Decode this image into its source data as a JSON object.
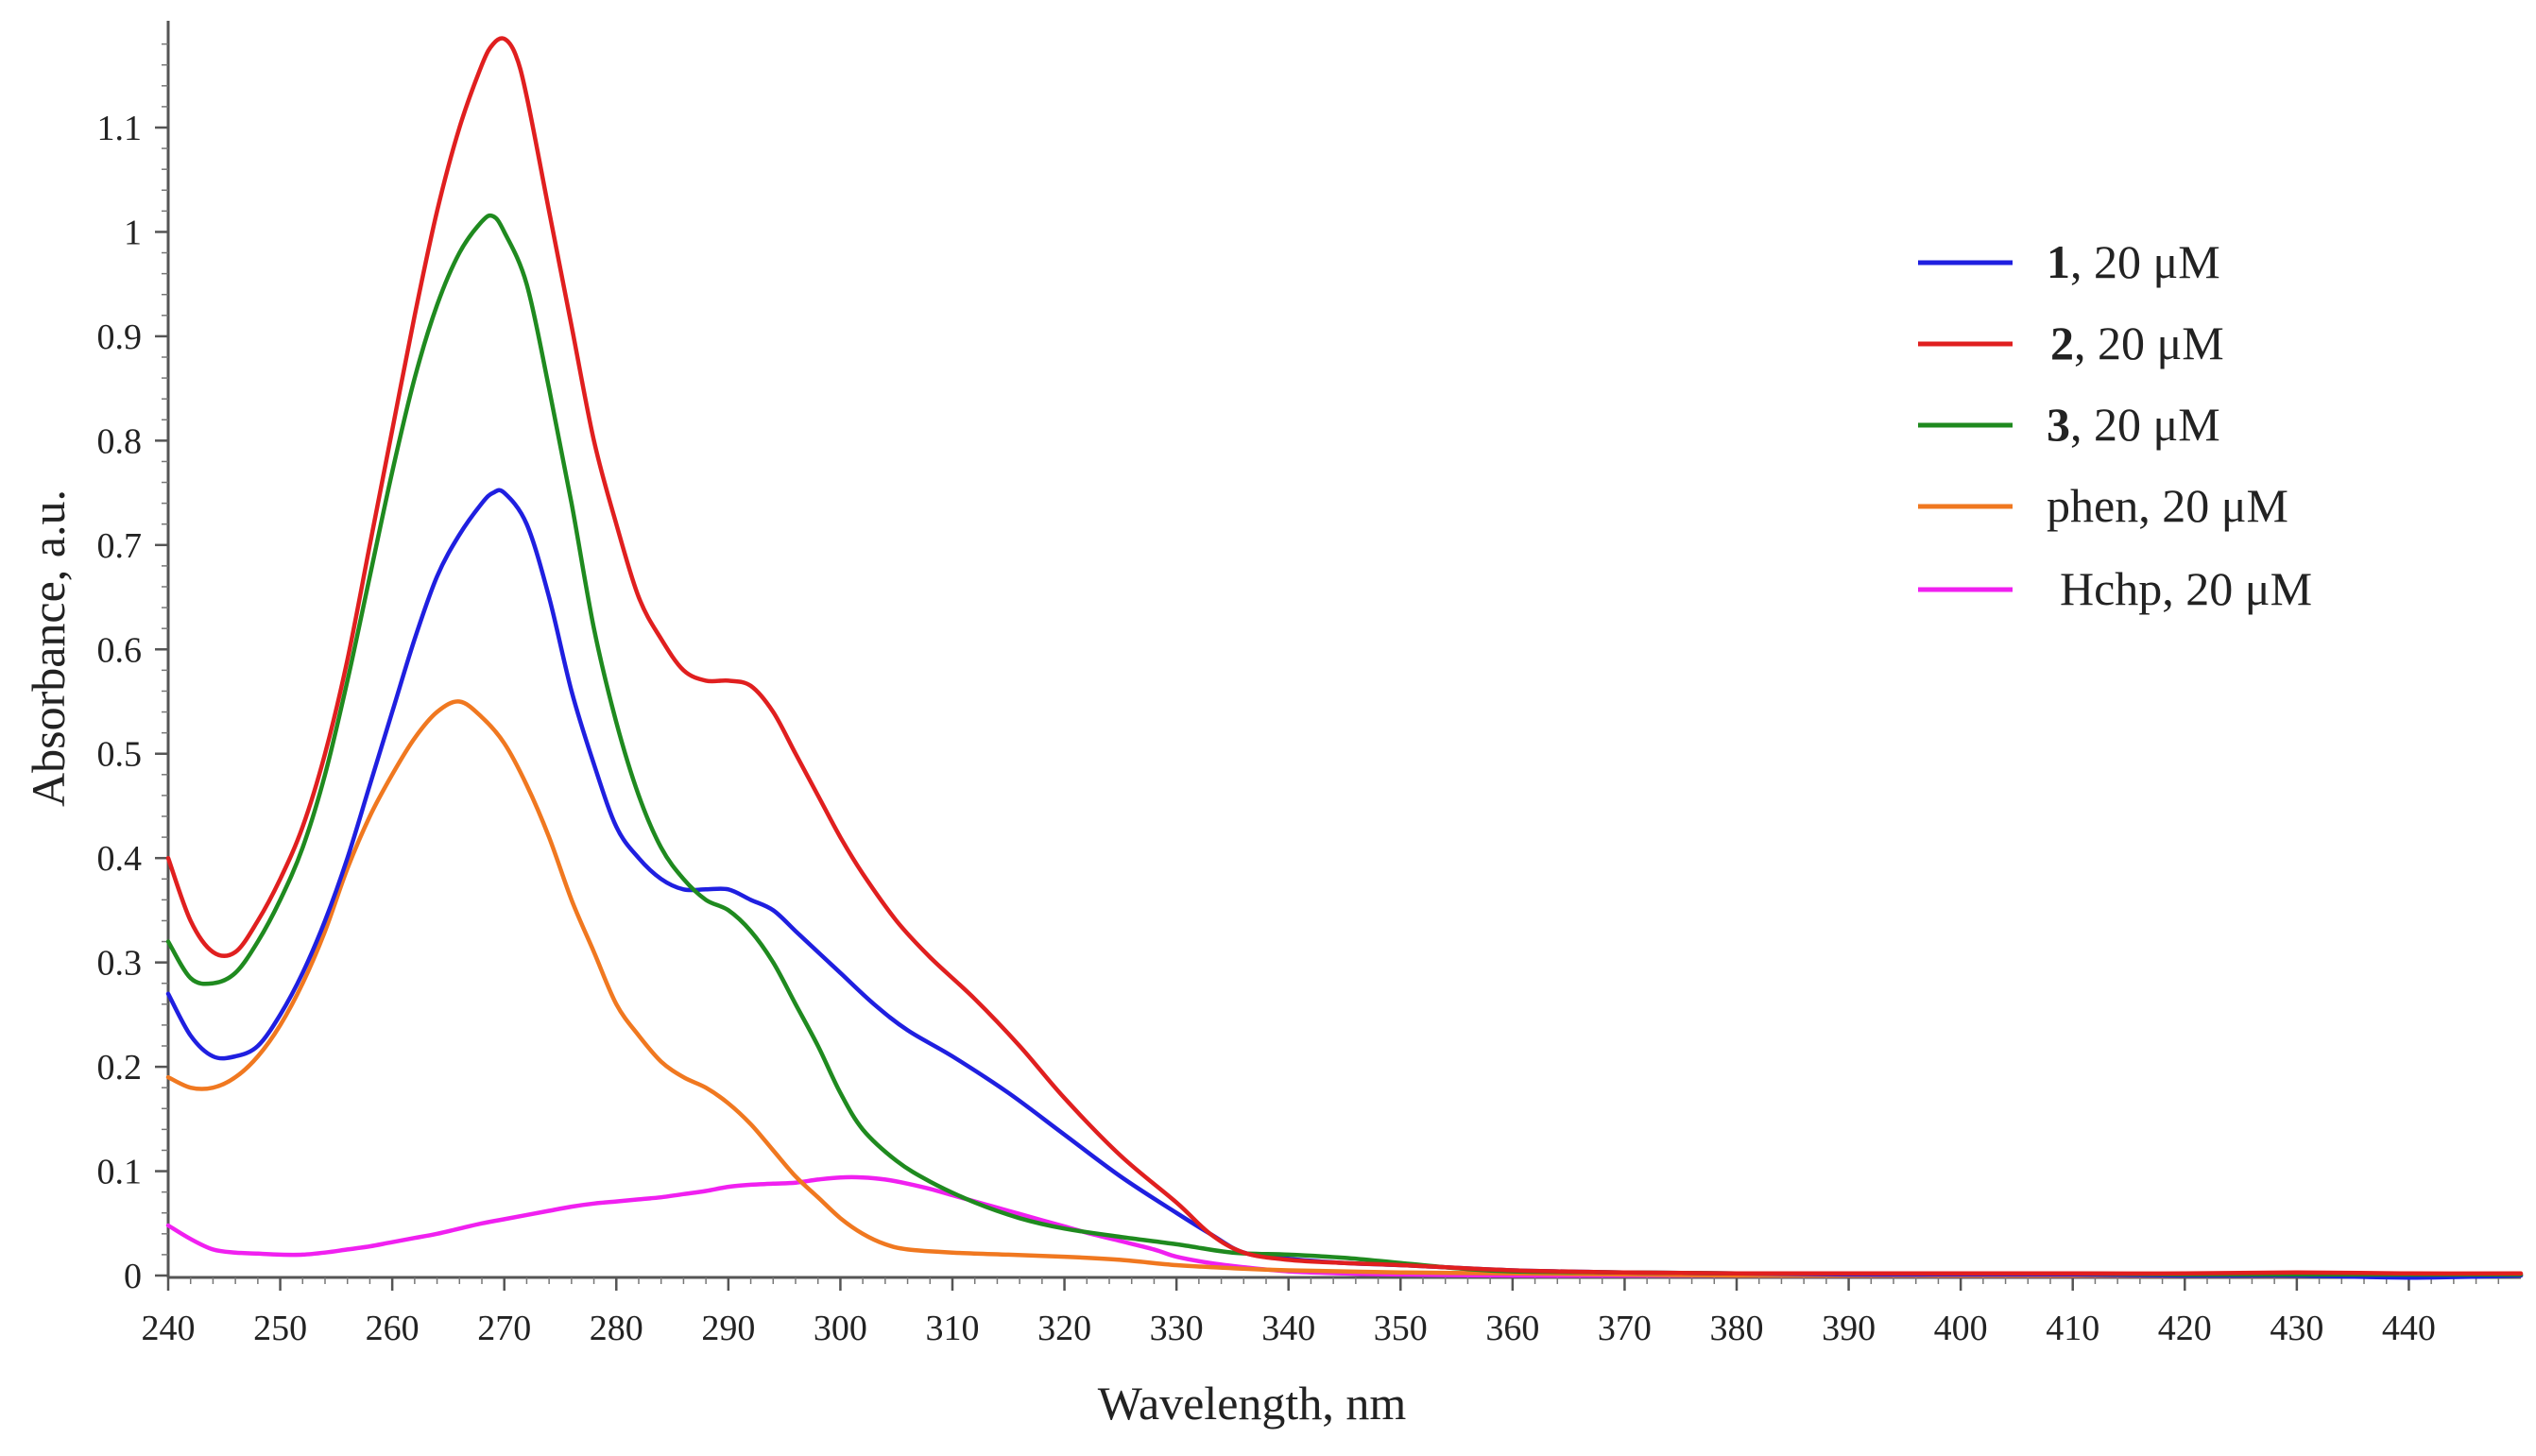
{
  "chart_data": {
    "type": "line",
    "title": "",
    "xlabel": "Wavelength, nm",
    "ylabel": "Absorbance, a.u.",
    "xlim": [
      240,
      450
    ],
    "ylim": [
      -0.01,
      1.19
    ],
    "grid": false,
    "legend_position": "top-right",
    "x_ticks": [
      240,
      250,
      260,
      270,
      280,
      290,
      300,
      310,
      320,
      330,
      340,
      350,
      360,
      370,
      380,
      390,
      400,
      410,
      420,
      430,
      440
    ],
    "x_tick_labels": [
      "240",
      "250",
      "260",
      "270",
      "280",
      "290",
      "300",
      "310",
      "320",
      "330",
      "340",
      "350",
      "360",
      "370",
      "380",
      "390",
      "400",
      "410",
      "420",
      "430",
      "440"
    ],
    "y_ticks": [
      0,
      0.1,
      0.2,
      0.3,
      0.4,
      0.5,
      0.6,
      0.7,
      0.8,
      0.9,
      1,
      1.1
    ],
    "y_tick_labels": [
      "0",
      "0.1",
      "0.2",
      "0.3",
      "0.4",
      "0.5",
      "0.6",
      "0.7",
      "0.8",
      "0.9",
      "1",
      "1.1"
    ],
    "series": [
      {
        "name": "1, 20 μM",
        "legend_bold": "1",
        "legend_rest": ", 20 μM",
        "color": "#1f1fe0",
        "points": [
          [
            240,
            0.27
          ],
          [
            242,
            0.23
          ],
          [
            244,
            0.21
          ],
          [
            246,
            0.21
          ],
          [
            248,
            0.22
          ],
          [
            250,
            0.25
          ],
          [
            252,
            0.29
          ],
          [
            254,
            0.34
          ],
          [
            256,
            0.4
          ],
          [
            258,
            0.47
          ],
          [
            260,
            0.54
          ],
          [
            262,
            0.61
          ],
          [
            264,
            0.67
          ],
          [
            266,
            0.71
          ],
          [
            268,
            0.74
          ],
          [
            269,
            0.75
          ],
          [
            270,
            0.75
          ],
          [
            272,
            0.72
          ],
          [
            274,
            0.65
          ],
          [
            276,
            0.56
          ],
          [
            278,
            0.49
          ],
          [
            280,
            0.43
          ],
          [
            282,
            0.4
          ],
          [
            284,
            0.38
          ],
          [
            286,
            0.37
          ],
          [
            288,
            0.37
          ],
          [
            290,
            0.37
          ],
          [
            292,
            0.36
          ],
          [
            294,
            0.35
          ],
          [
            296,
            0.33
          ],
          [
            298,
            0.31
          ],
          [
            300,
            0.29
          ],
          [
            303,
            0.26
          ],
          [
            306,
            0.235
          ],
          [
            310,
            0.21
          ],
          [
            315,
            0.175
          ],
          [
            320,
            0.135
          ],
          [
            325,
            0.095
          ],
          [
            330,
            0.06
          ],
          [
            333,
            0.04
          ],
          [
            336,
            0.022
          ],
          [
            340,
            0.016
          ],
          [
            345,
            0.012
          ],
          [
            350,
            0.01
          ],
          [
            360,
            0.005
          ],
          [
            370,
            0.003
          ],
          [
            380,
            0.002
          ],
          [
            390,
            0.001
          ],
          [
            400,
            0.001
          ],
          [
            410,
            0.001
          ],
          [
            420,
            0.0
          ],
          [
            430,
            0.0
          ],
          [
            440,
            -0.002
          ],
          [
            450,
            0.0
          ]
        ]
      },
      {
        "name": "2, 20 μM",
        "legend_bold": "2",
        "legend_rest": ", 20 μM",
        "color": "#e01f1f",
        "points": [
          [
            240,
            0.4
          ],
          [
            242,
            0.34
          ],
          [
            244,
            0.31
          ],
          [
            246,
            0.31
          ],
          [
            248,
            0.34
          ],
          [
            250,
            0.38
          ],
          [
            252,
            0.43
          ],
          [
            254,
            0.5
          ],
          [
            256,
            0.59
          ],
          [
            258,
            0.7
          ],
          [
            260,
            0.81
          ],
          [
            262,
            0.92
          ],
          [
            264,
            1.02
          ],
          [
            266,
            1.1
          ],
          [
            268,
            1.16
          ],
          [
            269,
            1.18
          ],
          [
            270,
            1.185
          ],
          [
            271,
            1.17
          ],
          [
            272,
            1.13
          ],
          [
            274,
            1.02
          ],
          [
            276,
            0.91
          ],
          [
            278,
            0.8
          ],
          [
            280,
            0.72
          ],
          [
            282,
            0.65
          ],
          [
            284,
            0.61
          ],
          [
            286,
            0.58
          ],
          [
            288,
            0.57
          ],
          [
            290,
            0.57
          ],
          [
            292,
            0.565
          ],
          [
            294,
            0.54
          ],
          [
            296,
            0.5
          ],
          [
            298,
            0.46
          ],
          [
            300,
            0.42
          ],
          [
            302,
            0.385
          ],
          [
            305,
            0.34
          ],
          [
            308,
            0.305
          ],
          [
            312,
            0.265
          ],
          [
            316,
            0.22
          ],
          [
            320,
            0.17
          ],
          [
            325,
            0.115
          ],
          [
            330,
            0.07
          ],
          [
            333,
            0.04
          ],
          [
            336,
            0.022
          ],
          [
            340,
            0.015
          ],
          [
            345,
            0.012
          ],
          [
            350,
            0.01
          ],
          [
            360,
            0.005
          ],
          [
            370,
            0.003
          ],
          [
            380,
            0.002
          ],
          [
            390,
            0.002
          ],
          [
            400,
            0.002
          ],
          [
            410,
            0.002
          ],
          [
            420,
            0.002
          ],
          [
            430,
            0.003
          ],
          [
            440,
            0.002
          ],
          [
            450,
            0.002
          ]
        ]
      },
      {
        "name": "3, 20 μM",
        "legend_bold": "3",
        "legend_rest": ", 20 μM",
        "color": "#1f8a1f",
        "points": [
          [
            240,
            0.32
          ],
          [
            242,
            0.285
          ],
          [
            244,
            0.28
          ],
          [
            246,
            0.29
          ],
          [
            248,
            0.32
          ],
          [
            250,
            0.36
          ],
          [
            252,
            0.41
          ],
          [
            254,
            0.48
          ],
          [
            256,
            0.57
          ],
          [
            258,
            0.67
          ],
          [
            260,
            0.77
          ],
          [
            262,
            0.86
          ],
          [
            264,
            0.93
          ],
          [
            266,
            0.98
          ],
          [
            268,
            1.01
          ],
          [
            269,
            1.015
          ],
          [
            270,
            1.0
          ],
          [
            272,
            0.95
          ],
          [
            274,
            0.85
          ],
          [
            276,
            0.74
          ],
          [
            278,
            0.62
          ],
          [
            280,
            0.53
          ],
          [
            282,
            0.46
          ],
          [
            284,
            0.41
          ],
          [
            286,
            0.38
          ],
          [
            288,
            0.36
          ],
          [
            290,
            0.35
          ],
          [
            292,
            0.33
          ],
          [
            294,
            0.3
          ],
          [
            296,
            0.26
          ],
          [
            298,
            0.22
          ],
          [
            300,
            0.175
          ],
          [
            302,
            0.14
          ],
          [
            305,
            0.11
          ],
          [
            308,
            0.09
          ],
          [
            312,
            0.07
          ],
          [
            316,
            0.055
          ],
          [
            320,
            0.045
          ],
          [
            325,
            0.037
          ],
          [
            330,
            0.03
          ],
          [
            335,
            0.022
          ],
          [
            340,
            0.02
          ],
          [
            345,
            0.017
          ],
          [
            350,
            0.012
          ],
          [
            355,
            0.007
          ],
          [
            360,
            0.004
          ],
          [
            370,
            0.003
          ],
          [
            380,
            0.002
          ],
          [
            390,
            0.002
          ],
          [
            400,
            0.002
          ],
          [
            410,
            0.002
          ],
          [
            420,
            0.001
          ],
          [
            430,
            0.001
          ],
          [
            440,
            0.001
          ],
          [
            450,
            0.001
          ]
        ]
      },
      {
        "name": "phen, 20 μM",
        "legend_bold": "",
        "legend_rest": "phen, 20 μM",
        "color": "#f07820",
        "points": [
          [
            240,
            0.19
          ],
          [
            242,
            0.18
          ],
          [
            244,
            0.18
          ],
          [
            246,
            0.19
          ],
          [
            248,
            0.21
          ],
          [
            250,
            0.24
          ],
          [
            252,
            0.28
          ],
          [
            254,
            0.33
          ],
          [
            256,
            0.39
          ],
          [
            258,
            0.44
          ],
          [
            260,
            0.48
          ],
          [
            262,
            0.515
          ],
          [
            264,
            0.54
          ],
          [
            266,
            0.55
          ],
          [
            268,
            0.535
          ],
          [
            270,
            0.51
          ],
          [
            272,
            0.47
          ],
          [
            274,
            0.42
          ],
          [
            276,
            0.36
          ],
          [
            278,
            0.31
          ],
          [
            280,
            0.26
          ],
          [
            282,
            0.23
          ],
          [
            284,
            0.205
          ],
          [
            286,
            0.19
          ],
          [
            288,
            0.18
          ],
          [
            290,
            0.165
          ],
          [
            292,
            0.145
          ],
          [
            294,
            0.12
          ],
          [
            296,
            0.095
          ],
          [
            298,
            0.075
          ],
          [
            300,
            0.055
          ],
          [
            302,
            0.04
          ],
          [
            304,
            0.03
          ],
          [
            306,
            0.025
          ],
          [
            310,
            0.022
          ],
          [
            315,
            0.02
          ],
          [
            320,
            0.018
          ],
          [
            325,
            0.015
          ],
          [
            330,
            0.01
          ],
          [
            335,
            0.007
          ],
          [
            340,
            0.005
          ],
          [
            350,
            0.003
          ],
          [
            360,
            0.002
          ],
          [
            370,
            0.001
          ],
          [
            380,
            0.0
          ],
          [
            390,
            0.0
          ],
          [
            400,
            0.0
          ],
          [
            410,
            0.0
          ],
          [
            420,
            0.0
          ],
          [
            430,
            0.0
          ],
          [
            440,
            0.0
          ],
          [
            450,
            0.0
          ]
        ]
      },
      {
        "name": "Hchp, 20 μM",
        "legend_bold": "",
        "legend_rest": "Hchp, 20 μM",
        "color": "#f020f0",
        "points": [
          [
            240,
            0.048
          ],
          [
            242,
            0.035
          ],
          [
            244,
            0.025
          ],
          [
            246,
            0.022
          ],
          [
            248,
            0.021
          ],
          [
            250,
            0.02
          ],
          [
            252,
            0.02
          ],
          [
            254,
            0.022
          ],
          [
            256,
            0.025
          ],
          [
            258,
            0.028
          ],
          [
            260,
            0.032
          ],
          [
            262,
            0.036
          ],
          [
            264,
            0.04
          ],
          [
            266,
            0.045
          ],
          [
            268,
            0.05
          ],
          [
            270,
            0.054
          ],
          [
            272,
            0.058
          ],
          [
            274,
            0.062
          ],
          [
            276,
            0.066
          ],
          [
            278,
            0.069
          ],
          [
            280,
            0.071
          ],
          [
            282,
            0.073
          ],
          [
            284,
            0.075
          ],
          [
            286,
            0.078
          ],
          [
            288,
            0.081
          ],
          [
            290,
            0.085
          ],
          [
            292,
            0.087
          ],
          [
            294,
            0.088
          ],
          [
            296,
            0.089
          ],
          [
            298,
            0.092
          ],
          [
            300,
            0.094
          ],
          [
            302,
            0.094
          ],
          [
            304,
            0.092
          ],
          [
            306,
            0.088
          ],
          [
            308,
            0.083
          ],
          [
            310,
            0.077
          ],
          [
            312,
            0.071
          ],
          [
            314,
            0.065
          ],
          [
            316,
            0.059
          ],
          [
            318,
            0.053
          ],
          [
            320,
            0.047
          ],
          [
            322,
            0.041
          ],
          [
            325,
            0.033
          ],
          [
            328,
            0.025
          ],
          [
            330,
            0.018
          ],
          [
            333,
            0.012
          ],
          [
            336,
            0.008
          ],
          [
            340,
            0.004
          ],
          [
            345,
            0.002
          ],
          [
            350,
            0.001
          ],
          [
            360,
            0.0
          ],
          [
            370,
            0.0
          ],
          [
            380,
            0.0
          ],
          [
            390,
            0.0
          ],
          [
            400,
            0.0
          ],
          [
            410,
            0.0
          ],
          [
            420,
            0.0
          ],
          [
            430,
            0.0
          ],
          [
            440,
            0.0
          ],
          [
            450,
            0.0
          ]
        ]
      }
    ]
  }
}
